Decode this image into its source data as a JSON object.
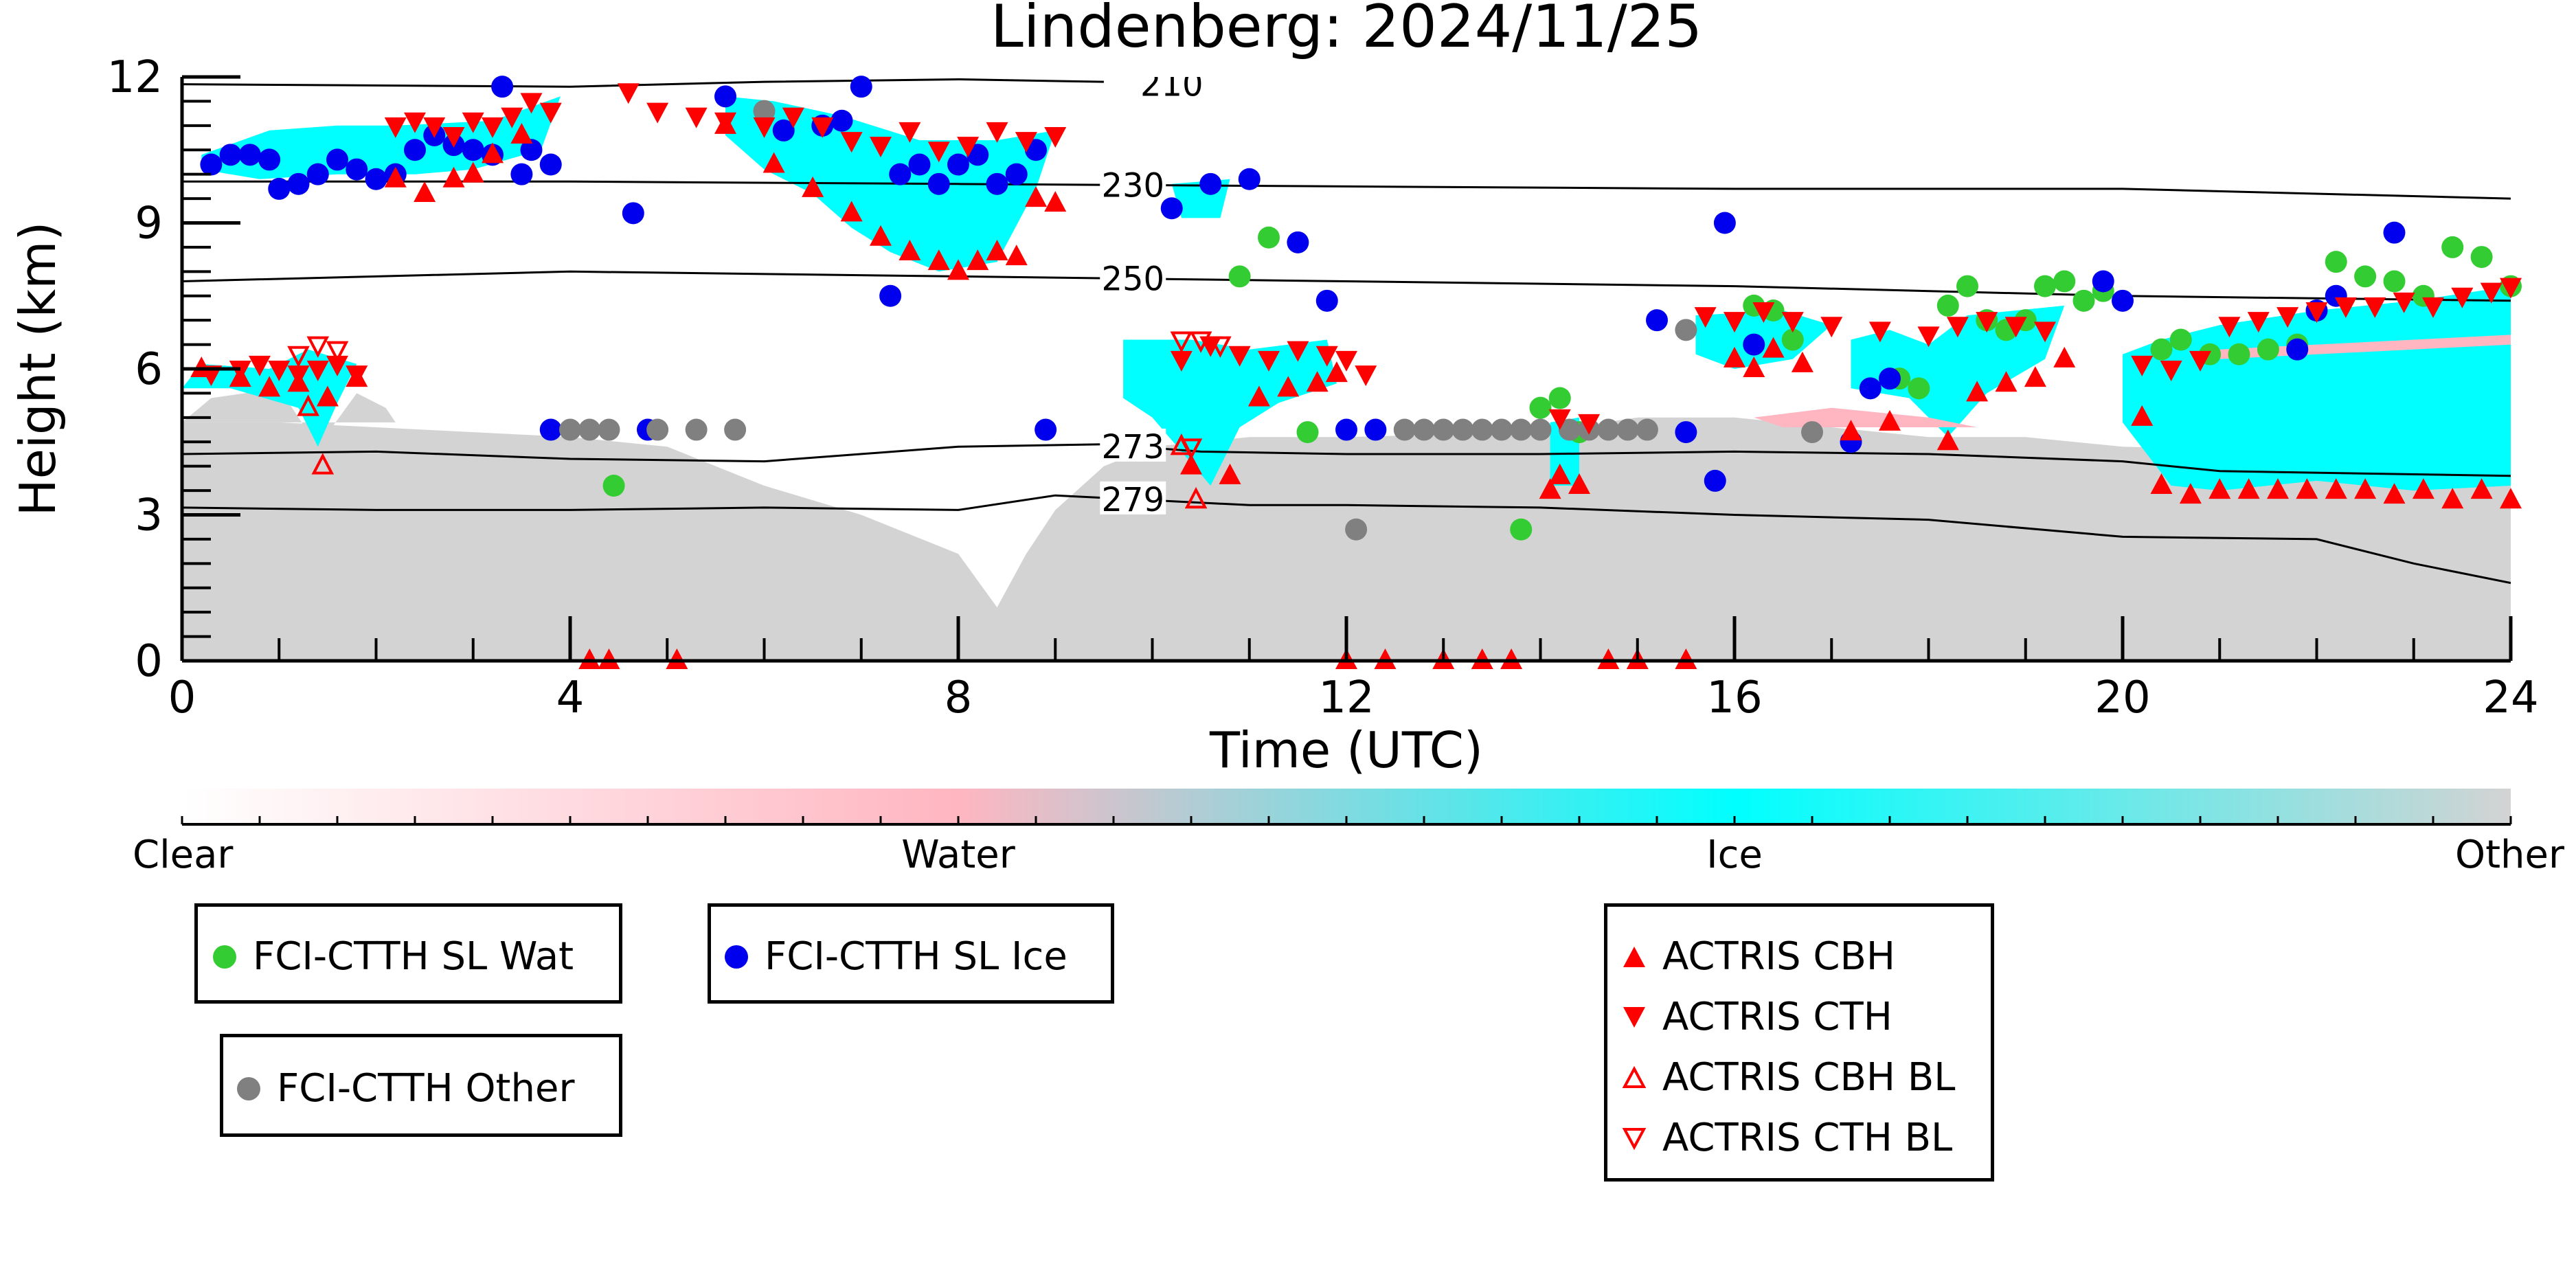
{
  "chart_data": {
    "type": "scatter",
    "title": "Lindenberg: 2024/11/25",
    "xlabel": "Time (UTC)",
    "ylabel": "Height (km)",
    "xlim": [
      0,
      24
    ],
    "ylim": [
      0,
      12
    ],
    "xticks": [
      "0",
      "4",
      "8",
      "12",
      "16",
      "20",
      "24"
    ],
    "yticks": [
      "0",
      "3",
      "6",
      "9",
      "12"
    ],
    "grid": false,
    "colorbar": {
      "labels": [
        "Clear",
        "Water",
        "Ice",
        "Other"
      ],
      "colors": [
        "#ffffff",
        "#ffb6c1",
        "#00ffff",
        "#d3d3d3"
      ]
    },
    "temperature_contours": [
      {
        "label": "210",
        "x": [
          0,
          4,
          6,
          8,
          9.5
        ],
        "y": [
          11.85,
          11.8,
          11.9,
          11.95,
          11.9
        ]
      },
      {
        "label": "230",
        "x": [
          0,
          4,
          8,
          12,
          16,
          20,
          24
        ],
        "y": [
          9.85,
          9.85,
          9.8,
          9.75,
          9.7,
          9.7,
          9.5
        ]
      },
      {
        "label": "250",
        "x": [
          0,
          2,
          4,
          6,
          8,
          10,
          12,
          16,
          20,
          24
        ],
        "y": [
          7.8,
          7.9,
          8.0,
          7.95,
          7.9,
          7.85,
          7.8,
          7.7,
          7.5,
          7.4
        ]
      },
      {
        "label": "273",
        "x": [
          0,
          2,
          4,
          6,
          8,
          9.5,
          10.5,
          12,
          14,
          16,
          18,
          20,
          21,
          24
        ],
        "y": [
          4.25,
          4.3,
          4.15,
          4.1,
          4.4,
          4.45,
          4.3,
          4.25,
          4.25,
          4.3,
          4.25,
          4.1,
          3.9,
          3.8
        ]
      },
      {
        "label": "279",
        "x": [
          0,
          2,
          4,
          6,
          8,
          9,
          10,
          11,
          12,
          14,
          16,
          18,
          20,
          22,
          23,
          24
        ],
        "y": [
          3.15,
          3.1,
          3.1,
          3.15,
          3.1,
          3.4,
          3.3,
          3.2,
          3.2,
          3.15,
          3.0,
          2.9,
          2.55,
          2.5,
          2.0,
          1.6
        ]
      }
    ],
    "series": [
      {
        "name": "FCI-CTTH SL Wat",
        "color": "#33cc33",
        "marker": "circle",
        "x": [
          4.45,
          10.9,
          11.2,
          11.6,
          13.8,
          14.0,
          14.2,
          14.4,
          16.2,
          16.4,
          16.6,
          17.7,
          17.9,
          18.2,
          18.4,
          18.6,
          18.8,
          19.0,
          19.2,
          19.4,
          19.6,
          19.8,
          20.4,
          20.6,
          20.9,
          21.2,
          21.5,
          21.8,
          22.2,
          22.5,
          22.8,
          23.1,
          23.4,
          23.7,
          24.0
        ],
        "y": [
          3.6,
          7.9,
          8.7,
          4.7,
          2.7,
          5.2,
          5.4,
          4.7,
          7.3,
          7.2,
          6.6,
          5.8,
          5.6,
          7.3,
          7.7,
          7.0,
          6.8,
          7.0,
          7.7,
          7.8,
          7.4,
          7.6,
          6.4,
          6.6,
          6.3,
          6.3,
          6.4,
          6.5,
          8.2,
          7.9,
          7.8,
          7.5,
          8.5,
          8.3,
          7.7
        ]
      },
      {
        "name": "FCI-CTTH SL Ice",
        "color": "#0000ee",
        "marker": "circle",
        "x": [
          0.3,
          0.5,
          0.7,
          0.9,
          1.0,
          1.2,
          1.4,
          1.6,
          1.8,
          2.0,
          2.2,
          2.4,
          2.6,
          2.8,
          3.0,
          3.2,
          3.3,
          3.5,
          3.6,
          3.8,
          3.8,
          4.8,
          4.65,
          5.6,
          6.2,
          6.6,
          6.8,
          7.0,
          7.4,
          7.6,
          7.3,
          7.8,
          8.0,
          8.2,
          8.4,
          8.6,
          8.8,
          8.9,
          10.2,
          10.6,
          11.0,
          11.5,
          11.8,
          12.0,
          12.3,
          15.2,
          15.5,
          15.8,
          15.9,
          16.2,
          17.2,
          17.4,
          17.6,
          19.8,
          20.0,
          21.8,
          22.0,
          22.2,
          22.8
        ],
        "y": [
          10.2,
          10.4,
          10.4,
          10.3,
          9.7,
          9.8,
          10.0,
          10.3,
          10.1,
          9.9,
          10.0,
          10.5,
          10.8,
          10.6,
          10.5,
          10.4,
          11.8,
          10.0,
          10.5,
          10.2,
          4.75,
          4.75,
          9.2,
          11.6,
          10.9,
          11.0,
          11.1,
          11.8,
          10.0,
          10.2,
          7.5,
          9.8,
          10.2,
          10.4,
          9.8,
          10.0,
          10.5,
          4.75,
          9.3,
          9.8,
          9.9,
          8.6,
          7.4,
          4.75,
          4.75,
          7.0,
          4.7,
          3.7,
          9.0,
          6.5,
          4.5,
          5.6,
          5.8,
          7.8,
          7.4,
          6.4,
          7.2,
          7.5,
          8.8
        ]
      },
      {
        "name": "FCI-CTTH Other",
        "color": "#808080",
        "marker": "circle",
        "x": [
          4.0,
          4.2,
          4.4,
          4.9,
          5.3,
          5.7,
          6.0,
          12.1,
          12.6,
          12.8,
          13.0,
          13.2,
          13.4,
          13.6,
          13.8,
          14.0,
          14.3,
          14.5,
          14.7,
          14.9,
          15.1,
          15.5,
          16.8
        ],
        "y": [
          4.75,
          4.75,
          4.75,
          4.75,
          4.75,
          4.75,
          11.3,
          2.7,
          4.75,
          4.75,
          4.75,
          4.75,
          4.75,
          4.75,
          4.75,
          4.75,
          4.75,
          4.75,
          4.75,
          4.75,
          4.75,
          6.8,
          4.7
        ]
      },
      {
        "name": "ACTRIS CBH",
        "color": "#ff0000",
        "marker": "triangle-up",
        "x": [
          0.2,
          0.6,
          0.9,
          1.2,
          1.5,
          1.8,
          2.2,
          2.5,
          2.8,
          3.0,
          3.2,
          3.5,
          4.2,
          4.4,
          5.1,
          5.6,
          6.1,
          6.5,
          6.9,
          7.2,
          7.5,
          7.8,
          8.0,
          8.2,
          8.4,
          8.6,
          8.8,
          9.0,
          10.4,
          10.8,
          11.1,
          11.4,
          11.7,
          11.9,
          12.0,
          12.4,
          13.0,
          13.4,
          13.7,
          14.1,
          14.2,
          14.4,
          14.7,
          15.0,
          15.5,
          16.0,
          16.2,
          16.4,
          16.7,
          17.2,
          17.6,
          18.2,
          18.5,
          18.8,
          19.1,
          19.4,
          20.2,
          20.4,
          20.7,
          21.0,
          21.3,
          21.6,
          21.9,
          22.2,
          22.5,
          22.8,
          23.1,
          23.4,
          23.7,
          24.0
        ],
        "y": [
          6.0,
          5.8,
          5.6,
          5.7,
          5.4,
          5.8,
          9.9,
          9.6,
          9.9,
          10.0,
          10.4,
          10.8,
          0.0,
          0.0,
          0.0,
          11.0,
          10.2,
          9.7,
          9.2,
          8.7,
          8.4,
          8.2,
          8.0,
          8.2,
          8.4,
          8.3,
          9.5,
          9.4,
          4.0,
          3.8,
          5.4,
          5.6,
          5.7,
          5.9,
          0.0,
          0.0,
          0.0,
          0.0,
          0.0,
          3.5,
          3.8,
          3.6,
          0.0,
          0.0,
          0.0,
          6.2,
          6.0,
          6.4,
          6.1,
          4.7,
          4.9,
          4.5,
          5.5,
          5.7,
          5.8,
          6.2,
          5.0,
          3.6,
          3.4,
          3.5,
          3.5,
          3.5,
          3.5,
          3.5,
          3.5,
          3.4,
          3.5,
          3.3,
          3.5,
          3.3
        ]
      },
      {
        "name": "ACTRIS CTH",
        "color": "#ff0000",
        "marker": "triangle-down",
        "x": [
          0.3,
          0.6,
          0.8,
          1.0,
          1.2,
          1.4,
          1.6,
          1.8,
          2.2,
          2.4,
          2.6,
          2.8,
          3.0,
          3.2,
          3.4,
          3.6,
          3.8,
          4.6,
          4.9,
          5.3,
          5.6,
          6.0,
          6.3,
          6.6,
          6.9,
          7.2,
          7.5,
          7.8,
          8.1,
          8.4,
          8.7,
          9.0,
          10.3,
          10.6,
          10.9,
          11.2,
          11.5,
          11.8,
          12.0,
          12.2,
          14.2,
          14.5,
          15.7,
          16.0,
          16.3,
          16.6,
          17.0,
          17.5,
          18.0,
          18.3,
          18.6,
          18.9,
          19.2,
          20.2,
          20.5,
          20.8,
          21.1,
          21.4,
          21.7,
          22.0,
          22.3,
          22.6,
          22.9,
          23.2,
          23.5,
          23.8,
          24.0
        ],
        "y": [
          5.9,
          6.0,
          6.1,
          6.0,
          5.9,
          6.0,
          6.1,
          5.9,
          11.0,
          11.1,
          11.0,
          10.8,
          11.1,
          11.0,
          11.2,
          11.5,
          11.3,
          11.7,
          11.3,
          11.2,
          11.1,
          11.0,
          11.2,
          11.0,
          10.7,
          10.6,
          10.9,
          10.5,
          10.6,
          10.9,
          10.7,
          10.8,
          6.2,
          6.5,
          6.3,
          6.2,
          6.4,
          6.3,
          6.2,
          5.9,
          5.0,
          4.9,
          7.1,
          7.0,
          7.2,
          7.0,
          6.9,
          6.8,
          6.7,
          6.9,
          7.0,
          6.9,
          6.8,
          6.1,
          6.0,
          6.2,
          6.9,
          7.0,
          7.1,
          7.2,
          7.3,
          7.3,
          7.4,
          7.3,
          7.5,
          7.6,
          7.7
        ]
      },
      {
        "name": "ACTRIS CBH BL",
        "color": "#ff0000",
        "marker": "triangle-up-open",
        "x": [
          1.3,
          1.45,
          10.3,
          10.45
        ],
        "y": [
          5.2,
          4.0,
          4.4,
          3.3
        ]
      },
      {
        "name": "ACTRIS CTH BL",
        "color": "#ff0000",
        "marker": "triangle-down-open",
        "x": [
          1.2,
          1.4,
          1.6,
          10.3,
          10.5,
          10.7,
          10.4
        ],
        "y": [
          6.3,
          6.5,
          6.4,
          6.6,
          6.6,
          6.5,
          4.4
        ]
      }
    ]
  },
  "legend": {
    "wat": "FCI-CTTH SL Wat",
    "ice": "FCI-CTTH SL Ice",
    "other": "FCI-CTTH Other",
    "cbh": "ACTRIS CBH",
    "cth": "ACTRIS CTH",
    "cbh_bl": "ACTRIS CBH BL",
    "cth_bl": "ACTRIS CTH BL"
  }
}
